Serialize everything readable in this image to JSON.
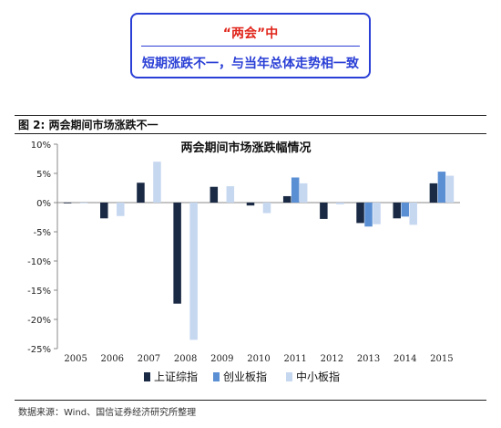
{
  "banner": {
    "title": "“两会”中",
    "subtitle": "短期涨跌不一，与当年总体走势相一致"
  },
  "figure": {
    "caption": "图 2:  两会期间市场涨跌不一",
    "source": "数据来源：Wind、国信证券经济研究所整理"
  },
  "chart_data": {
    "type": "bar",
    "title": "两会期间市场涨跌幅情况",
    "categories": [
      "2005",
      "2006",
      "2007",
      "2008",
      "2009",
      "2010",
      "2011",
      "2012",
      "2013",
      "2014",
      "2015"
    ],
    "series": [
      {
        "name": "上证综指",
        "color": "#1a2a44",
        "values": [
          0.0,
          -2.7,
          3.4,
          -17.3,
          2.7,
          -0.5,
          1.1,
          -2.8,
          -3.5,
          -2.7,
          3.3
        ]
      },
      {
        "name": "创业板指",
        "color": "#5b8fd4",
        "values": [
          null,
          null,
          null,
          null,
          null,
          null,
          4.3,
          null,
          -4.1,
          -2.4,
          5.3
        ]
      },
      {
        "name": "中小板指",
        "color": "#c6d7f0",
        "values": [
          -0.1,
          -2.3,
          7.0,
          -23.5,
          2.8,
          -1.8,
          3.3,
          -0.3,
          -3.7,
          -3.8,
          4.6
        ]
      }
    ],
    "ylim": [
      -25,
      10
    ],
    "yticks": [
      "10%",
      "5%",
      "0%",
      "-5%",
      "-10%",
      "-15%",
      "-20%",
      "-25%"
    ],
    "ytick_values": [
      10,
      5,
      0,
      -5,
      -10,
      -15,
      -20,
      -25
    ],
    "legend_position": "bottom",
    "grid": false
  }
}
